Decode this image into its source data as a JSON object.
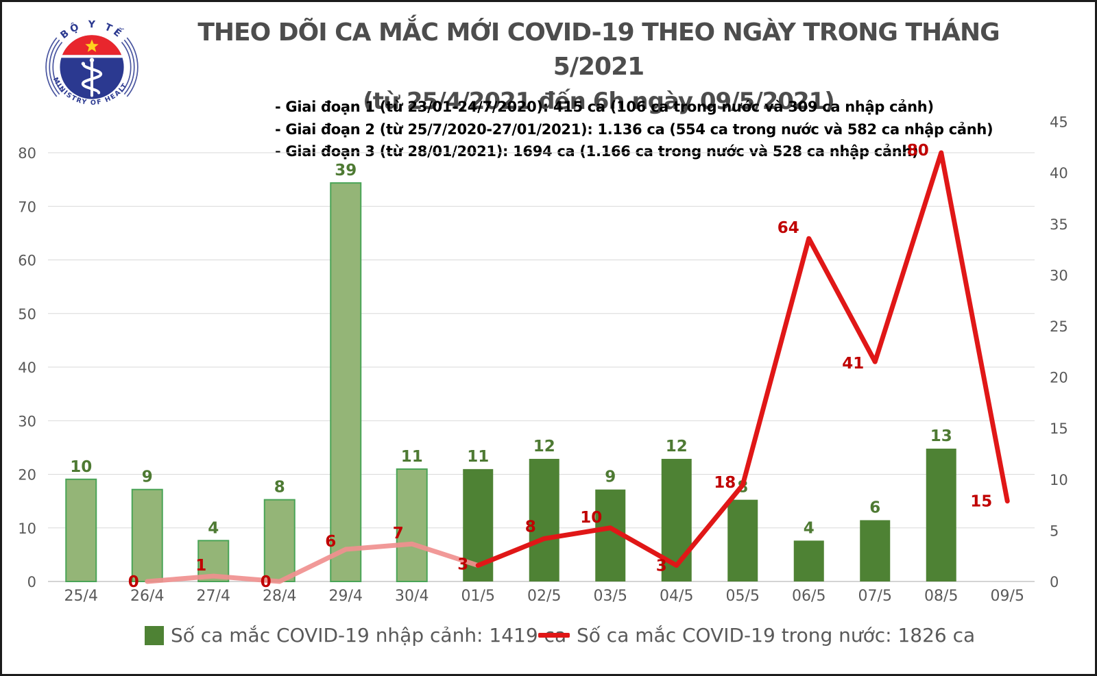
{
  "logo": {
    "top_text": "BỘ Y TẾ",
    "bottom_text": "MINISTRY OF HEALTH",
    "colors": {
      "blue": "#2b3990",
      "red": "#e8262d",
      "star": "#ffd21e"
    }
  },
  "title": {
    "line1": "THEO DÕI CA MẮC MỚI COVID-19 THEO NGÀY TRONG THÁNG 5/2021",
    "line2": "(từ 25/4/2021 đến 6h ngày 09/5/2021)"
  },
  "notes": [
    "- Giai đoạn 1 (từ 23/01-24/7/2020): 415 ca (106 ca trong nước và 309 ca nhập cảnh)",
    "- Giai đoạn 2 (từ 25/7/2020-27/01/2021): 1.136 ca (554 ca trong nước và 582 ca nhập cảnh)",
    "- Giai đoạn 3 (từ 28/01/2021): 1694 ca (1.166 ca trong nước và 528 ca nhập cảnh)"
  ],
  "legend": [
    {
      "label": "Số ca mắc COVID-19 nhập cảnh: 1419 ca",
      "marker": "square",
      "color": "#4e8234"
    },
    {
      "label": "Số ca mắc COVID-19 trong nước: 1826 ca",
      "marker": "line",
      "color": "#e01717"
    }
  ],
  "chart_data": {
    "type": "combo",
    "categories": [
      "25/4",
      "26/4",
      "27/4",
      "28/4",
      "29/4",
      "30/4",
      "01/5",
      "02/5",
      "03/5",
      "04/5",
      "05/5",
      "06/5",
      "07/5",
      "08/5",
      "09/5"
    ],
    "series": [
      {
        "name": "Số ca mắc COVID-19 nhập cảnh",
        "type": "bar",
        "axis": "right",
        "values": [
          10,
          9,
          4,
          8,
          39,
          11,
          11,
          12,
          9,
          12,
          8,
          4,
          6,
          13,
          null
        ],
        "light_style_through_index": 5
      },
      {
        "name": "Số ca mắc COVID-19 trong nước",
        "type": "line",
        "axis": "left",
        "values": [
          null,
          0,
          1,
          0,
          6,
          7,
          3,
          8,
          10,
          3,
          18,
          64,
          41,
          80,
          15
        ],
        "pink_segment_through_index": 6
      }
    ],
    "left_axis": {
      "min": 0,
      "max": 80,
      "step": 10
    },
    "right_axis": {
      "min": 0,
      "max": 45,
      "step": 5
    },
    "grid": "horizontal",
    "legend_position": "bottom",
    "colors": {
      "bar_light_fill": "#94b577",
      "bar_light_stroke": "#4aa457",
      "bar_dark_fill": "#4e8234",
      "bar_value_label": "#4e7a33",
      "line_red": "#e01717",
      "line_pink": "#f0908f",
      "point_value_label": "#c00000",
      "grid_line": "#d9d9d9",
      "axis_baseline": "#c6c6c6",
      "axis_text": "#595959"
    }
  }
}
